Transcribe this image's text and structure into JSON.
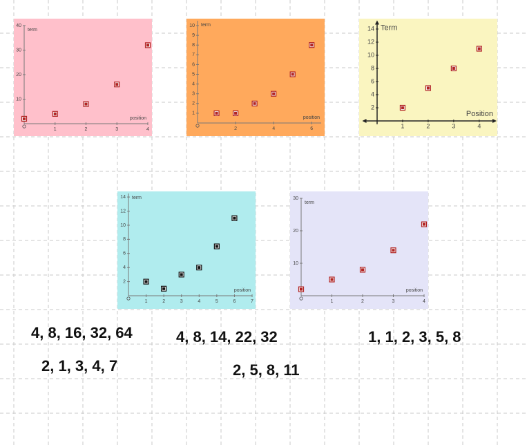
{
  "chart_data": [
    {
      "type": "scatter",
      "ylabel": "term",
      "xlabel": "position",
      "x": [
        0,
        1,
        2,
        3,
        4
      ],
      "values": [
        2,
        4,
        8,
        16,
        32
      ],
      "xlim": [
        0,
        4
      ],
      "ylim": [
        0,
        40
      ],
      "xticks": [
        1,
        2,
        3,
        4
      ],
      "yticks": [
        10,
        20,
        30,
        40
      ],
      "background": "#ffc0cb",
      "color": "#b22222"
    },
    {
      "type": "scatter",
      "ylabel": "term",
      "xlabel": "position",
      "x": [
        1,
        2,
        3,
        4,
        5,
        6
      ],
      "values": [
        1,
        1,
        2,
        3,
        5,
        8
      ],
      "xlim": [
        0,
        6.5
      ],
      "ylim": [
        0,
        10.5
      ],
      "xticks": [
        2,
        4,
        6
      ],
      "yticks": [
        1,
        2,
        3,
        4,
        5,
        6,
        7,
        8,
        9,
        10
      ],
      "background": "#ffa95c",
      "color": "#b22222"
    },
    {
      "type": "scatter",
      "ylabel": "Term",
      "xlabel": "Position",
      "x": [
        1,
        2,
        3,
        4
      ],
      "values": [
        2,
        5,
        8,
        11
      ],
      "xlim": [
        -0.5,
        4.6
      ],
      "ylim": [
        -0.5,
        15
      ],
      "xticks": [
        1,
        2,
        3,
        4
      ],
      "yticks": [
        2,
        4,
        6,
        8,
        10,
        12,
        14
      ],
      "background": "#faf5c0",
      "color": "#b22222"
    },
    {
      "type": "scatter",
      "ylabel": "term",
      "xlabel": "position",
      "x": [
        1,
        2,
        3,
        4,
        5,
        6
      ],
      "values": [
        2,
        1,
        3,
        4,
        7,
        11
      ],
      "xlim": [
        0,
        7
      ],
      "ylim": [
        0,
        14.5
      ],
      "xticks": [
        1,
        2,
        3,
        4,
        5,
        6,
        7
      ],
      "yticks": [
        2,
        4,
        6,
        8,
        10,
        12,
        14
      ],
      "background": "#b0ecee",
      "color": "#111111"
    },
    {
      "type": "scatter",
      "ylabel": "term",
      "xlabel": "position",
      "x": [
        0,
        1,
        2,
        3,
        4
      ],
      "values": [
        2,
        5,
        8,
        14,
        22
      ],
      "xlim": [
        0,
        4
      ],
      "ylim": [
        0,
        30
      ],
      "xticks": [
        1,
        2,
        3,
        4
      ],
      "yticks": [
        10,
        20,
        30
      ],
      "background": "#e4e4f8",
      "color": "#b22222"
    }
  ],
  "sequences": [
    "4, 8, 16, 32, 64",
    "2, 1, 3, 4, 7",
    "4, 8, 14, 22, 32",
    "2, 5, 8, 11",
    "1, 1, 2, 3, 5, 8"
  ]
}
